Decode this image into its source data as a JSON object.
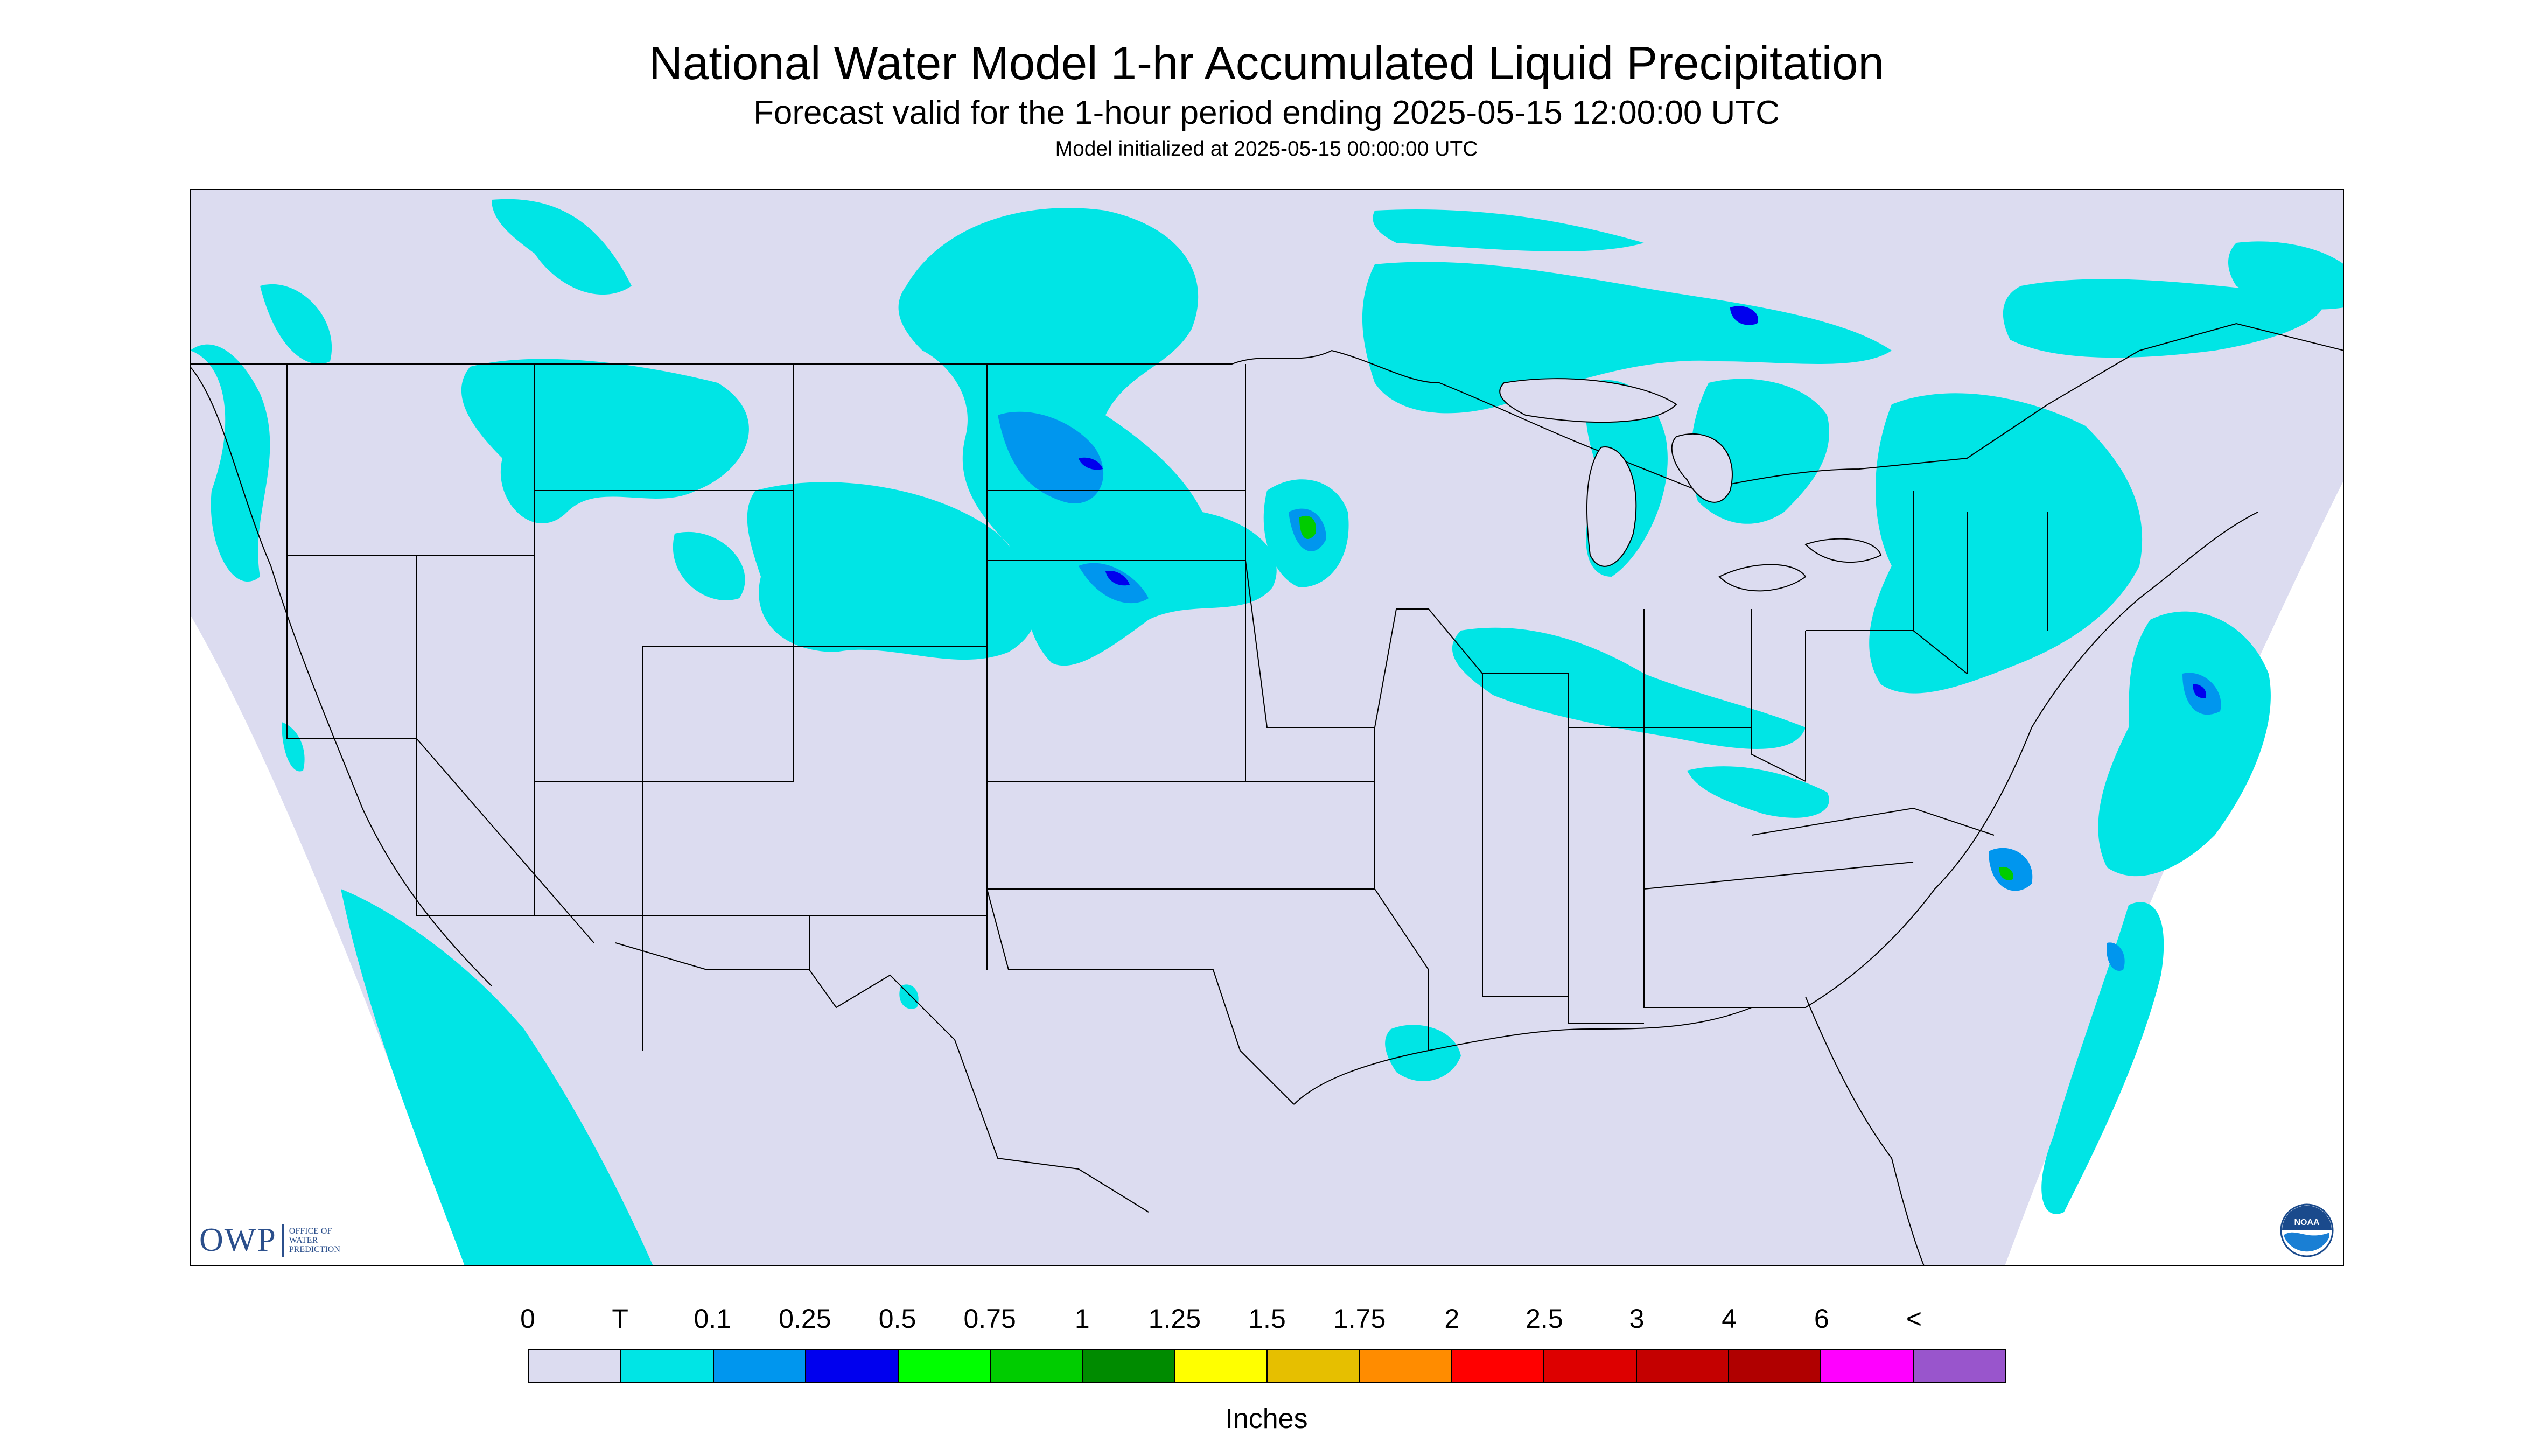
{
  "title": "National Water Model 1-hr Accumulated Liquid Precipitation",
  "subtitle": "Forecast valid for the 1-hour period ending 2025-05-15 12:00:00 UTC",
  "init_text": "Model initialized at 2025-05-15 00:00:00 UTC",
  "logos": {
    "owp_mark": "OWP",
    "owp_text": [
      "OFFICE OF",
      "WATER",
      "PREDICTION"
    ],
    "noaa_mark": "NOAA"
  },
  "colors": {
    "background": "#dcdcf0",
    "out_of_domain": "#ffffff",
    "boundary": "#000000"
  },
  "legend": {
    "units": "Inches",
    "tick_labels": [
      "0",
      "T",
      "0.1",
      "0.25",
      "0.5",
      "0.75",
      "1",
      "1.25",
      "1.5",
      "1.75",
      "2",
      "2.5",
      "3",
      "4",
      "6",
      "<"
    ],
    "bins": [
      {
        "color": "#dcdcf0"
      },
      {
        "color": "#00e5e5"
      },
      {
        "color": "#0096ee"
      },
      {
        "color": "#0000ee"
      },
      {
        "color": "#00ff00"
      },
      {
        "color": "#00cc00"
      },
      {
        "color": "#008b00"
      },
      {
        "color": "#ffff00"
      },
      {
        "color": "#e6bf00"
      },
      {
        "color": "#ff8c00"
      },
      {
        "color": "#ff0000"
      },
      {
        "color": "#dd0000"
      },
      {
        "color": "#c40000"
      },
      {
        "color": "#b00000"
      },
      {
        "color": "#ff00ff"
      },
      {
        "color": "#9955cc"
      }
    ]
  },
  "map": {
    "regions": [
      {
        "name": "pacific-northwest",
        "level": "T"
      },
      {
        "name": "northern-rockies",
        "level": "T"
      },
      {
        "name": "western-dakotas",
        "level": "0.1"
      },
      {
        "name": "eastern-south-dakota",
        "level": "0.25"
      },
      {
        "name": "southern-minnesota",
        "level": "0.5"
      },
      {
        "name": "great-lakes",
        "level": "T"
      },
      {
        "name": "ohio-valley",
        "level": "T"
      },
      {
        "name": "northeast",
        "level": "T"
      },
      {
        "name": "offshore-atlantic",
        "level": "0.25"
      },
      {
        "name": "offshore-carolina",
        "level": "0.5"
      },
      {
        "name": "offshore-pacific",
        "level": "T"
      },
      {
        "name": "gulf-coast",
        "level": "T"
      }
    ]
  }
}
